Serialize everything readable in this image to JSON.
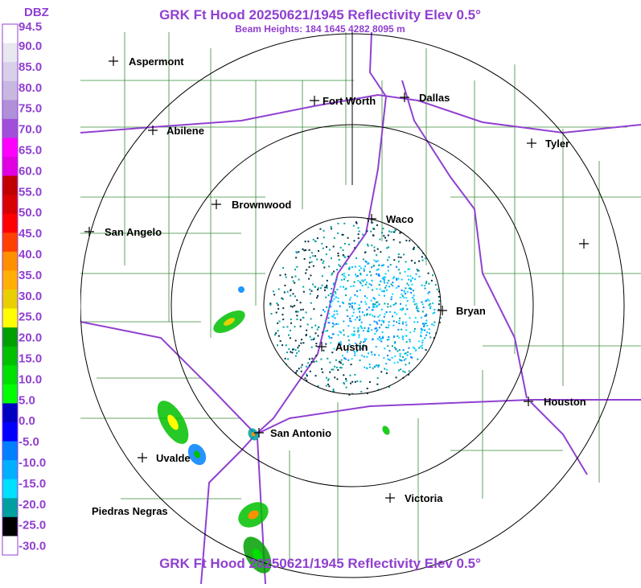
{
  "header": {
    "title": "GRK Ft Hood 20250621/1945 Reflectivity Elev 0.5°",
    "subtitle": "Beam Heights: 184 1645 4282 8095 m",
    "footer_title": "GRK Ft Hood 20250621/1945 Reflectivity Elev 0.5°"
  },
  "scale": {
    "unit": "DBZ",
    "labels": [
      "94.5",
      "90.0",
      "85.0",
      "80.0",
      "75.0",
      "70.0",
      "65.0",
      "60.0",
      "55.0",
      "50.0",
      "45.0",
      "40.0",
      "35.0",
      "30.0",
      "25.0",
      "20.0",
      "15.0",
      "10.0",
      "5.0",
      "0.0",
      "-5.0",
      "-10.0",
      "-15.0",
      "-20.0",
      "-25.0",
      "-30.0"
    ],
    "band_colors": [
      "#ffffff",
      "#e8e8f0",
      "#d8d0e8",
      "#c8b8e0",
      "#b090d8",
      "#a050d8",
      "#ff00ff",
      "#e000e0",
      "#c00000",
      "#d80000",
      "#ff0000",
      "#ff4000",
      "#ff9000",
      "#ffb000",
      "#e8d000",
      "#ffff00",
      "#00a000",
      "#00c000",
      "#00e000",
      "#00ff00",
      "#0000c0",
      "#0000ff",
      "#0080ff",
      "#00b0ff",
      "#00e0ff",
      "#00a0a0",
      "#000000",
      "#ffffff"
    ]
  },
  "cities": [
    "Aspermont",
    "Fort Worth",
    "Dallas",
    "Abilene",
    "Tyler",
    "Brownwood",
    "Waco",
    "San Angelo",
    "Bryan",
    "Austin",
    "Houston",
    "San Antonio",
    "Uvalde",
    "Piedras Negras",
    "Victoria"
  ]
}
